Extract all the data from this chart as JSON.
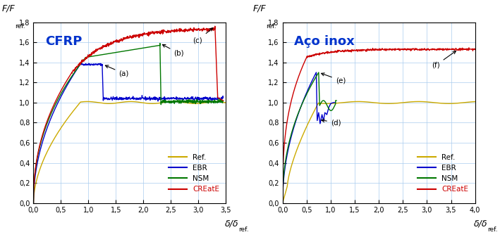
{
  "left_title": "CFRP",
  "right_title": "Aço inox",
  "ylabel": "F/F",
  "ylabel_sub": "ref.",
  "xlabel": "δ/δ",
  "xlabel_sub": "ref.",
  "xlim_left": [
    0,
    3.5
  ],
  "xlim_right": [
    0,
    4.0
  ],
  "ylim": [
    0,
    1.8
  ],
  "xticks_left": [
    0.0,
    0.5,
    1.0,
    1.5,
    2.0,
    2.5,
    3.0,
    3.5
  ],
  "xticks_right": [
    0.0,
    0.5,
    1.0,
    1.5,
    2.0,
    2.5,
    3.0,
    3.5,
    4.0
  ],
  "yticks": [
    0.0,
    0.2,
    0.4,
    0.6,
    0.8,
    1.0,
    1.2,
    1.4,
    1.6,
    1.8
  ],
  "colors": {
    "ref": "#ccaa00",
    "ebr": "#0000cc",
    "nsm": "#007700",
    "create": "#cc0000"
  },
  "legend_labels": [
    "Ref.",
    "EBR",
    "NSM",
    "CREatE"
  ],
  "bg_color": "#ffffff",
  "grid_color": "#aaccee",
  "annotation_color": "#000000"
}
